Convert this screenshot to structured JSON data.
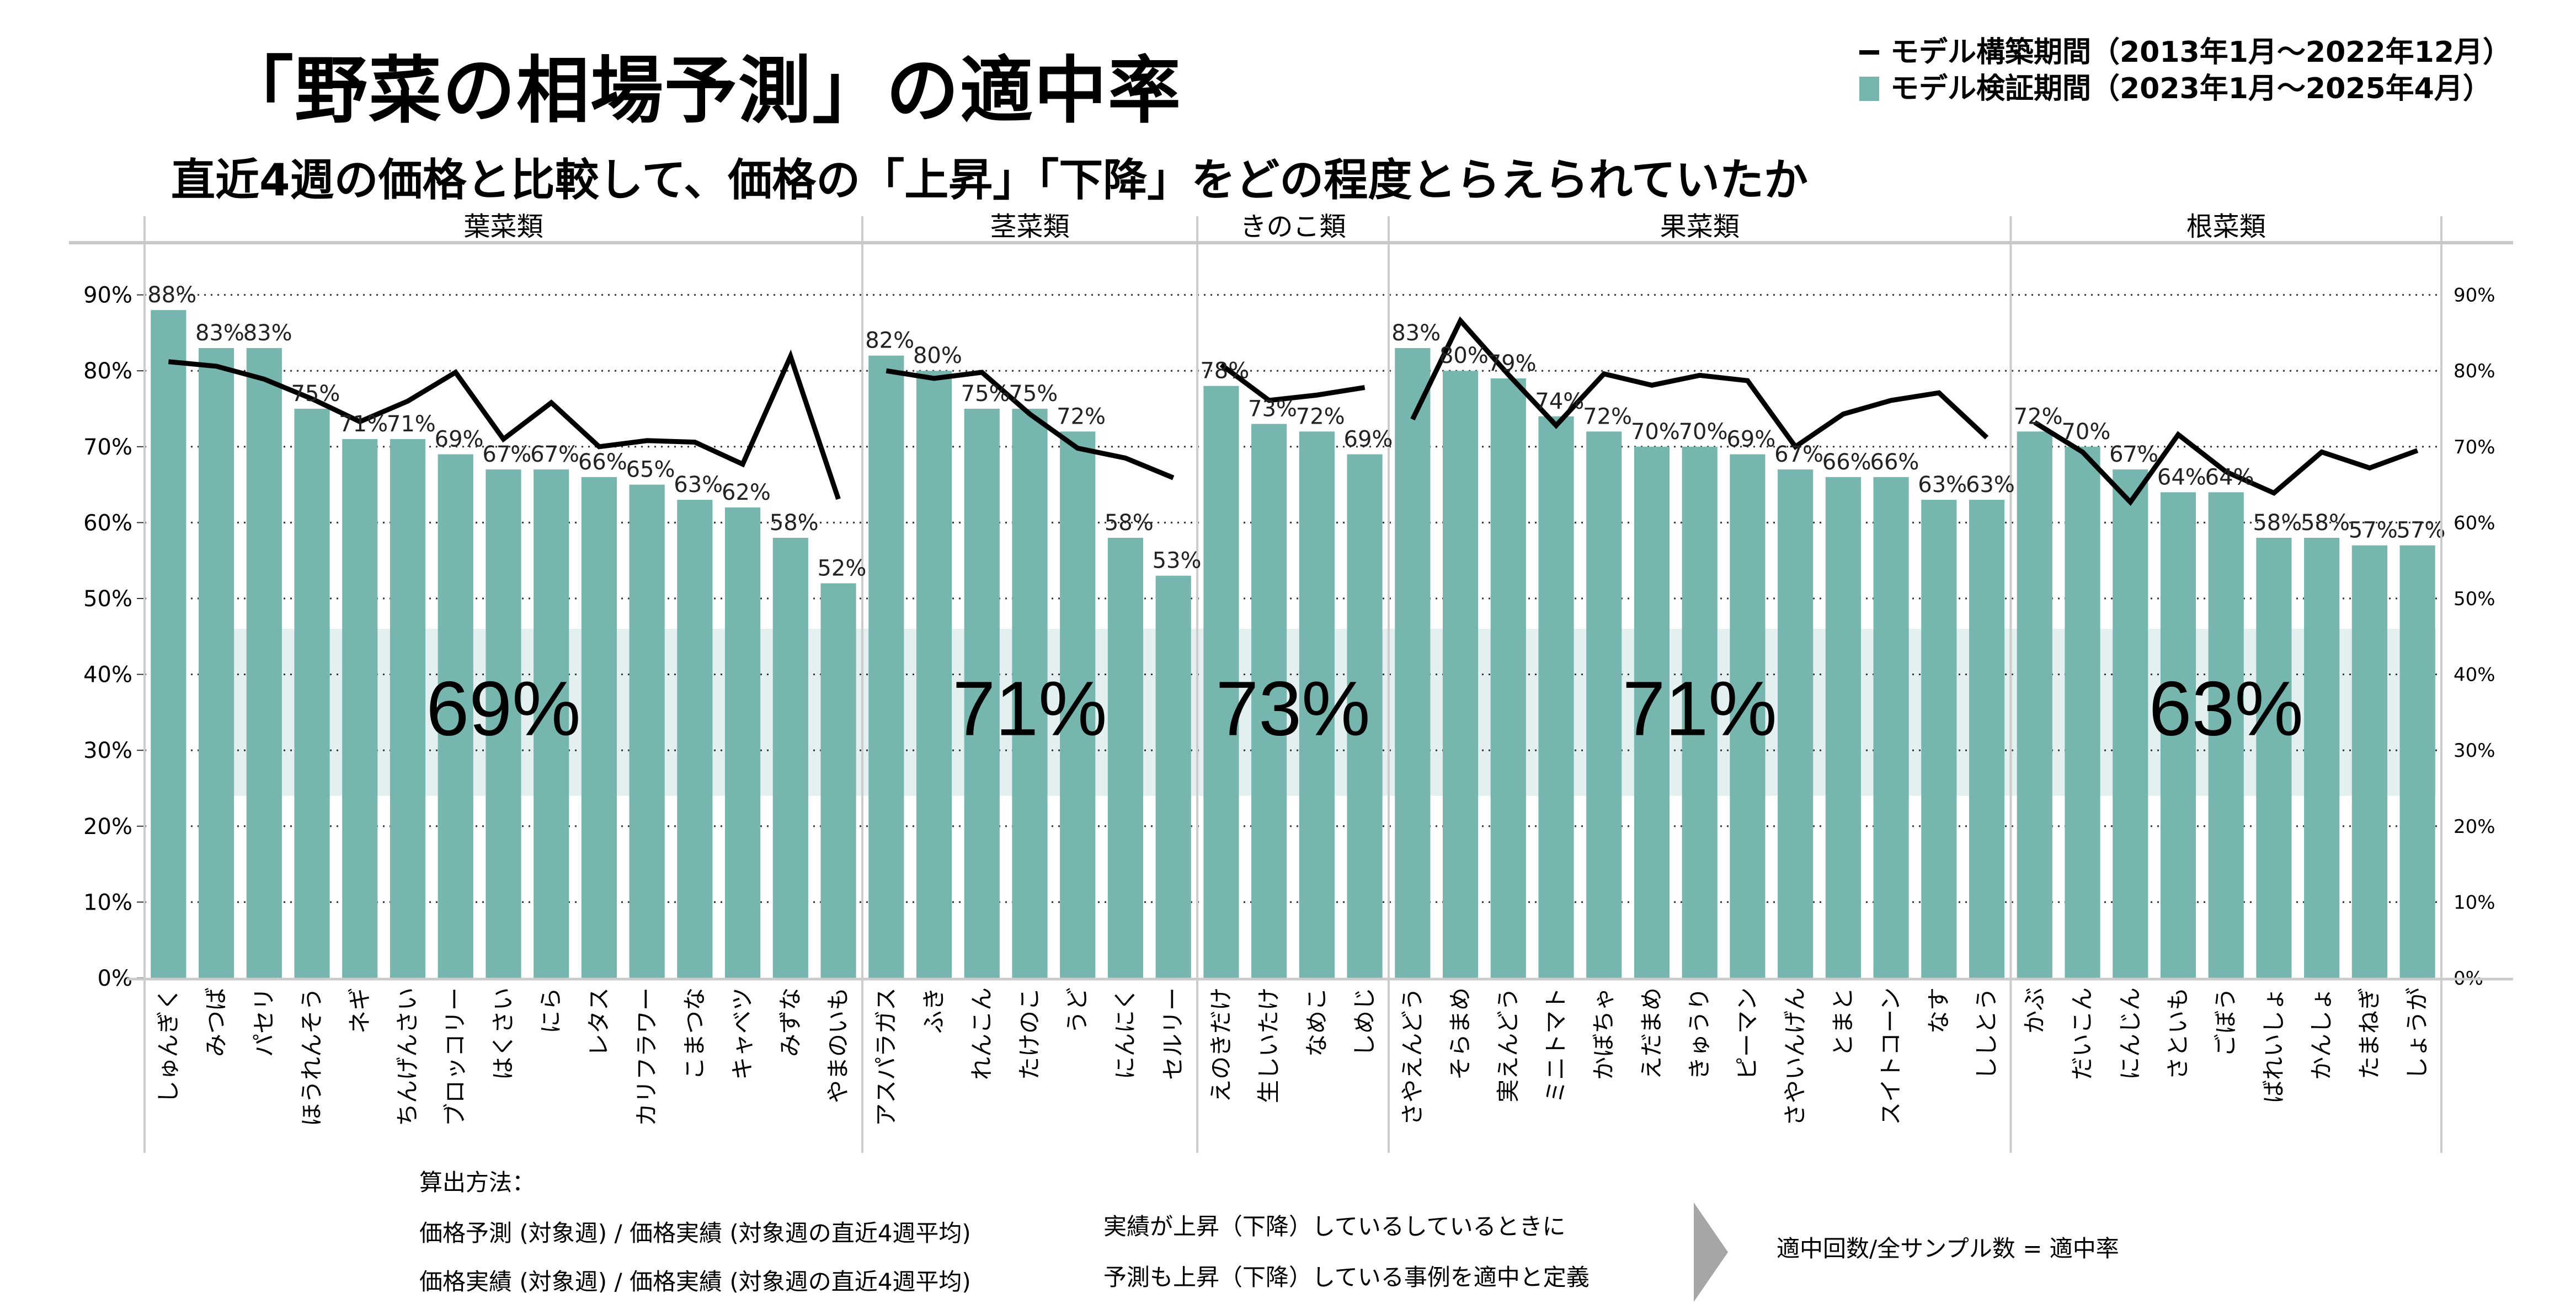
{
  "header": {
    "title": "「野菜の相場予測」の適中率",
    "subtitle": "直近4週の価格と比較して、価格の「上昇」「下降」をどの程度とらえられていたか"
  },
  "legend": {
    "line_label": "モデル構築期間（2013年1月～2022年12月）",
    "bar_label": "モデル検証期間（2023年1月～2025年4月）"
  },
  "colors": {
    "bar": "#77b5af",
    "line": "#000000",
    "band": "#e4f0ef",
    "grid": "#333333",
    "divider": "#cccccc"
  },
  "chart_data": {
    "type": "bar",
    "title": "「野菜の相場予測」の適中率",
    "subtitle": "直近4週の価格と比較して、価格の「上昇」「下降」をどの程度とらえられていたか",
    "xlabel": "",
    "ylabel": "",
    "ylim": [
      0,
      100
    ],
    "yticks": [
      0,
      10,
      20,
      30,
      40,
      50,
      60,
      70,
      80,
      90
    ],
    "ytick_labels": [
      "0%",
      "10%",
      "20%",
      "30%",
      "40%",
      "50%",
      "60%",
      "70%",
      "80%",
      "90%"
    ],
    "grid": true,
    "legend_position": "top-right",
    "average_band": [
      24,
      46
    ],
    "series_names": {
      "bars": "モデル検証期間（2023年1月～2025年4月）",
      "line": "モデル構築期間（2013年1月～2022年12月）"
    },
    "groups": [
      {
        "name": "葉菜類",
        "average": "69%",
        "categories": [
          "しゅんぎく",
          "みつば",
          "パセリ",
          "ほうれんそう",
          "ネギ",
          "ちんげんさい",
          "ブロッコリー",
          "はくさい",
          "にら",
          "レタス",
          "カリフラワー",
          "こまつな",
          "キャベツ",
          "みずな",
          "やまのいも"
        ],
        "bar_values": [
          88,
          83,
          83,
          75,
          71,
          71,
          69,
          67,
          67,
          66,
          65,
          63,
          62,
          58,
          52
        ],
        "line_values": [
          81.2,
          80.6,
          78.9,
          76.3,
          73.3,
          76.0,
          79.8,
          71.0,
          75.8,
          70.0,
          70.8,
          70.6,
          67.7,
          81.9,
          63.1
        ]
      },
      {
        "name": "茎菜類",
        "average": "71%",
        "categories": [
          "アスパラガス",
          "ふき",
          "れんこん",
          "たけのこ",
          "うど",
          "にんにく",
          "セルリー"
        ],
        "bar_values": [
          82,
          80,
          75,
          75,
          72,
          58,
          53
        ],
        "line_values": [
          80.0,
          79.0,
          79.8,
          74.3,
          69.8,
          68.5,
          65.9
        ]
      },
      {
        "name": "きのこ類",
        "average": "73%",
        "categories": [
          "えのきだけ",
          "生しいたけ",
          "なめこ",
          "しめじ"
        ],
        "bar_values": [
          78,
          73,
          72,
          69
        ],
        "line_values": [
          80.8,
          76.1,
          76.8,
          77.8
        ]
      },
      {
        "name": "果菜類",
        "average": "71%",
        "categories": [
          "さやえんどう",
          "そらまめ",
          "実えんどう",
          "ミニトマト",
          "かぼちゃ",
          "えだまめ",
          "きゅうり",
          "ピーマン",
          "さやいんげん",
          "とまと",
          "スイトコーン",
          "なす",
          "ししとう"
        ],
        "bar_values": [
          83,
          80,
          79,
          74,
          72,
          70,
          70,
          69,
          67,
          66,
          66,
          63,
          63
        ],
        "line_values": [
          73.6,
          86.6,
          79.5,
          72.8,
          79.6,
          78.1,
          79.4,
          78.7,
          70.0,
          74.3,
          76.1,
          77.1,
          71.2
        ]
      },
      {
        "name": "根菜類",
        "average": "63%",
        "categories": [
          "かぶ",
          "だいこん",
          "にんじん",
          "さといも",
          "ごぼう",
          "ばれいしょ",
          "かんしょ",
          "たまねぎ",
          "しょうが"
        ],
        "bar_values": [
          72,
          70,
          67,
          64,
          64,
          58,
          58,
          57,
          57
        ],
        "line_values": [
          73.2,
          69.3,
          62.7,
          71.6,
          66.7,
          63.9,
          69.3,
          67.2,
          69.5
        ]
      }
    ]
  },
  "footer": {
    "method_title": "算出方法：",
    "formula_forecast": "価格予測 (対象週) / 価格実績 (対象週の直近4週平均)",
    "formula_actual": "価格実績 (対象週) / 価格実績 (対象週の直近4週平均)",
    "condition_line1": "実績が上昇（下降）しているしているときに",
    "condition_line2": "予測も上昇（下降）している事例を適中と定義",
    "result": "適中回数/全サンプル数 = 適中率"
  }
}
